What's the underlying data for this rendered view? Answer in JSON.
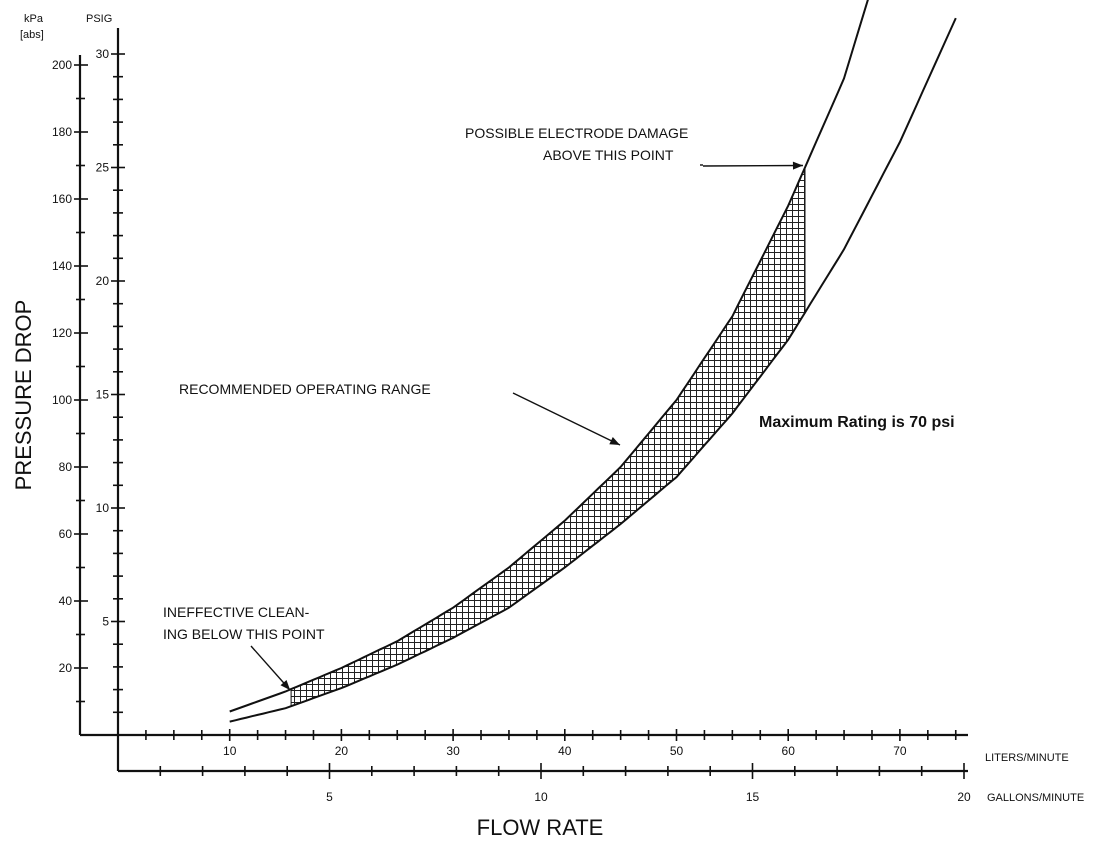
{
  "chart_data": {
    "type": "line",
    "title": "",
    "xlabel": "FLOW RATE",
    "ylabel": "PRESSURE DROP",
    "axes": {
      "kpa": {
        "unit": "kPa",
        "unit2": "[abs]",
        "range": [
          0,
          210
        ],
        "ticks": [
          20,
          40,
          60,
          80,
          100,
          120,
          140,
          160,
          180,
          200
        ]
      },
      "psig": {
        "unit": "PSIG",
        "range": [
          0,
          31
        ],
        "ticks": [
          5,
          10,
          15,
          20,
          25,
          30
        ]
      },
      "lpm": {
        "unit": "LITERS/MINUTE",
        "range": [
          0,
          80
        ],
        "ticks": [
          10,
          20,
          30,
          40,
          50,
          60,
          70
        ]
      },
      "gpm": {
        "unit": "GALLONS/MINUTE",
        "range": [
          0,
          20
        ],
        "ticks": [
          5,
          10,
          15,
          20
        ]
      }
    },
    "series": [
      {
        "name": "",
        "x_lpm": [
          10,
          15,
          20,
          25,
          30,
          35,
          40,
          45,
          50,
          55,
          60,
          65,
          69
        ],
        "y_kpa": [
          7,
          13,
          20,
          28,
          38,
          50,
          64,
          80,
          100,
          125,
          158,
          196,
          240
        ]
      },
      {
        "name": "",
        "x_lpm": [
          10,
          15,
          20,
          25,
          30,
          35,
          40,
          45,
          50,
          55,
          60,
          65,
          70,
          75
        ],
        "y_kpa": [
          4,
          8,
          14,
          21,
          29,
          38,
          50,
          63,
          77,
          96,
          118,
          145,
          177,
          214
        ]
      }
    ],
    "shaded_region": {
      "label": "RECOMMENDED OPERATING RANGE",
      "x_lpm": [
        15.5,
        61.5
      ]
    },
    "annotations": {
      "electrode": [
        "POSSIBLE ELECTRODE DAMAGE",
        "ABOVE THIS POINT"
      ],
      "range": "RECOMMENDED OPERATING RANGE",
      "cleaning": [
        "INEFFECTIVE CLEAN-",
        "ING BELOW THIS POINT"
      ],
      "rating": "Maximum Rating is 70 psi"
    }
  }
}
